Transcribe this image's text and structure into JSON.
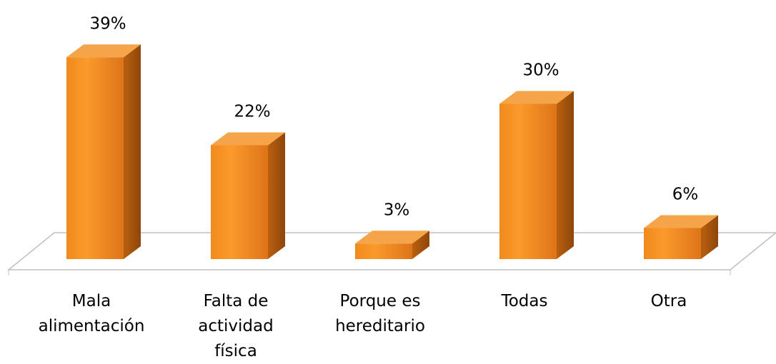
{
  "chart_data": {
    "type": "bar3d",
    "categories": [
      "Mala alimentación",
      "Falta de actividad física",
      "Porque es hereditario",
      "Todas",
      "Otra"
    ],
    "values": [
      39,
      22,
      3,
      30,
      6
    ],
    "value_labels": [
      "39%",
      "22%",
      "3%",
      "30%",
      "6%"
    ],
    "color": "#f7941d"
  }
}
